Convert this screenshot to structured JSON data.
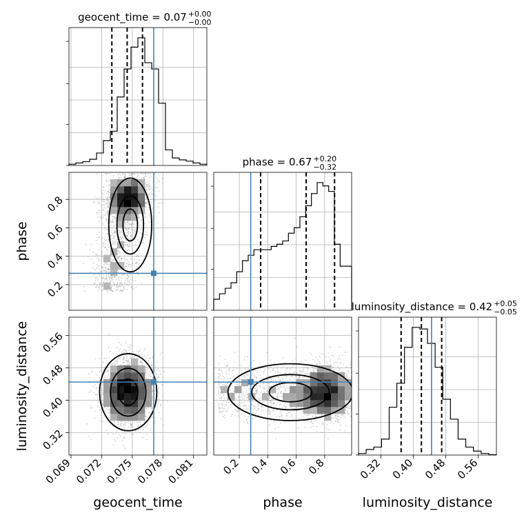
{
  "chart_data": {
    "type": "corner",
    "parameters": [
      "geocent_time",
      "phase",
      "luminosity_distance"
    ],
    "titles": [
      {
        "param": "geocent_time",
        "label": "geocent_time = 0.07",
        "plus": "+0.00",
        "minus": "−0.00"
      },
      {
        "param": "phase",
        "label": "phase = 0.67",
        "plus": "+0.20",
        "minus": "−0.32"
      },
      {
        "param": "luminosity_distance",
        "label": "luminosity_distance = 0.42",
        "plus": "+0.05",
        "minus": "−0.05"
      }
    ],
    "ranges": {
      "geocent_time": [
        0.0688,
        0.0823
      ],
      "phase": [
        0.02,
        0.99
      ],
      "luminosity_distance": [
        0.265,
        0.605
      ]
    },
    "ticks": {
      "geocent_time": [
        "0.069",
        "0.072",
        "0.075",
        "0.078",
        "0.081"
      ],
      "phase": [
        "0.2",
        "0.4",
        "0.6",
        "0.8"
      ],
      "luminosity_distance": [
        "0.32",
        "0.40",
        "0.48",
        "0.56"
      ]
    },
    "tick_values": {
      "geocent_time": [
        0.069,
        0.072,
        0.075,
        0.078,
        0.081
      ],
      "phase": [
        0.2,
        0.4,
        0.6,
        0.8
      ],
      "luminosity_distance": [
        0.32,
        0.4,
        0.48,
        0.56
      ]
    },
    "truths": {
      "geocent_time": 0.0771,
      "phase": 0.28,
      "luminosity_distance": 0.445
    },
    "quantiles": {
      "geocent_time": [
        0.073,
        0.0745,
        0.076
      ],
      "phase": [
        0.35,
        0.67,
        0.87
      ],
      "luminosity_distance": [
        0.37,
        0.42,
        0.47
      ]
    },
    "histograms": {
      "geocent_time": {
        "edges_start": 0.0688,
        "edges_end": 0.0823,
        "counts": [
          0.2,
          0.4,
          0.6,
          1,
          2,
          4,
          5.5,
          11,
          15.5,
          19,
          20.5,
          16.5,
          15.5,
          10,
          2.5,
          1.2,
          0.9,
          0.7,
          0.4,
          0.2
        ]
      },
      "phase": {
        "edges_start": 0.02,
        "edges_end": 0.99,
        "counts": [
          1,
          1.5,
          2,
          2.5,
          3.5,
          4.5,
          5,
          5.5,
          5.5,
          5.5,
          5.8,
          6,
          6.3,
          7,
          7.5,
          8.5,
          9.5,
          10.6,
          11.6,
          11.3,
          10.8,
          6,
          4,
          4
        ]
      },
      "luminosity_distance": {
        "edges_start": 0.265,
        "edges_end": 0.605,
        "counts": [
          0.2,
          0.7,
          1,
          2,
          6,
          9,
          13.5,
          16,
          15.8,
          14,
          11,
          7,
          4.5,
          2,
          1,
          0.5,
          0.2,
          0.05
        ]
      }
    },
    "contour_levels": [
      0.39,
      0.86,
      0.99
    ],
    "grid": true
  }
}
